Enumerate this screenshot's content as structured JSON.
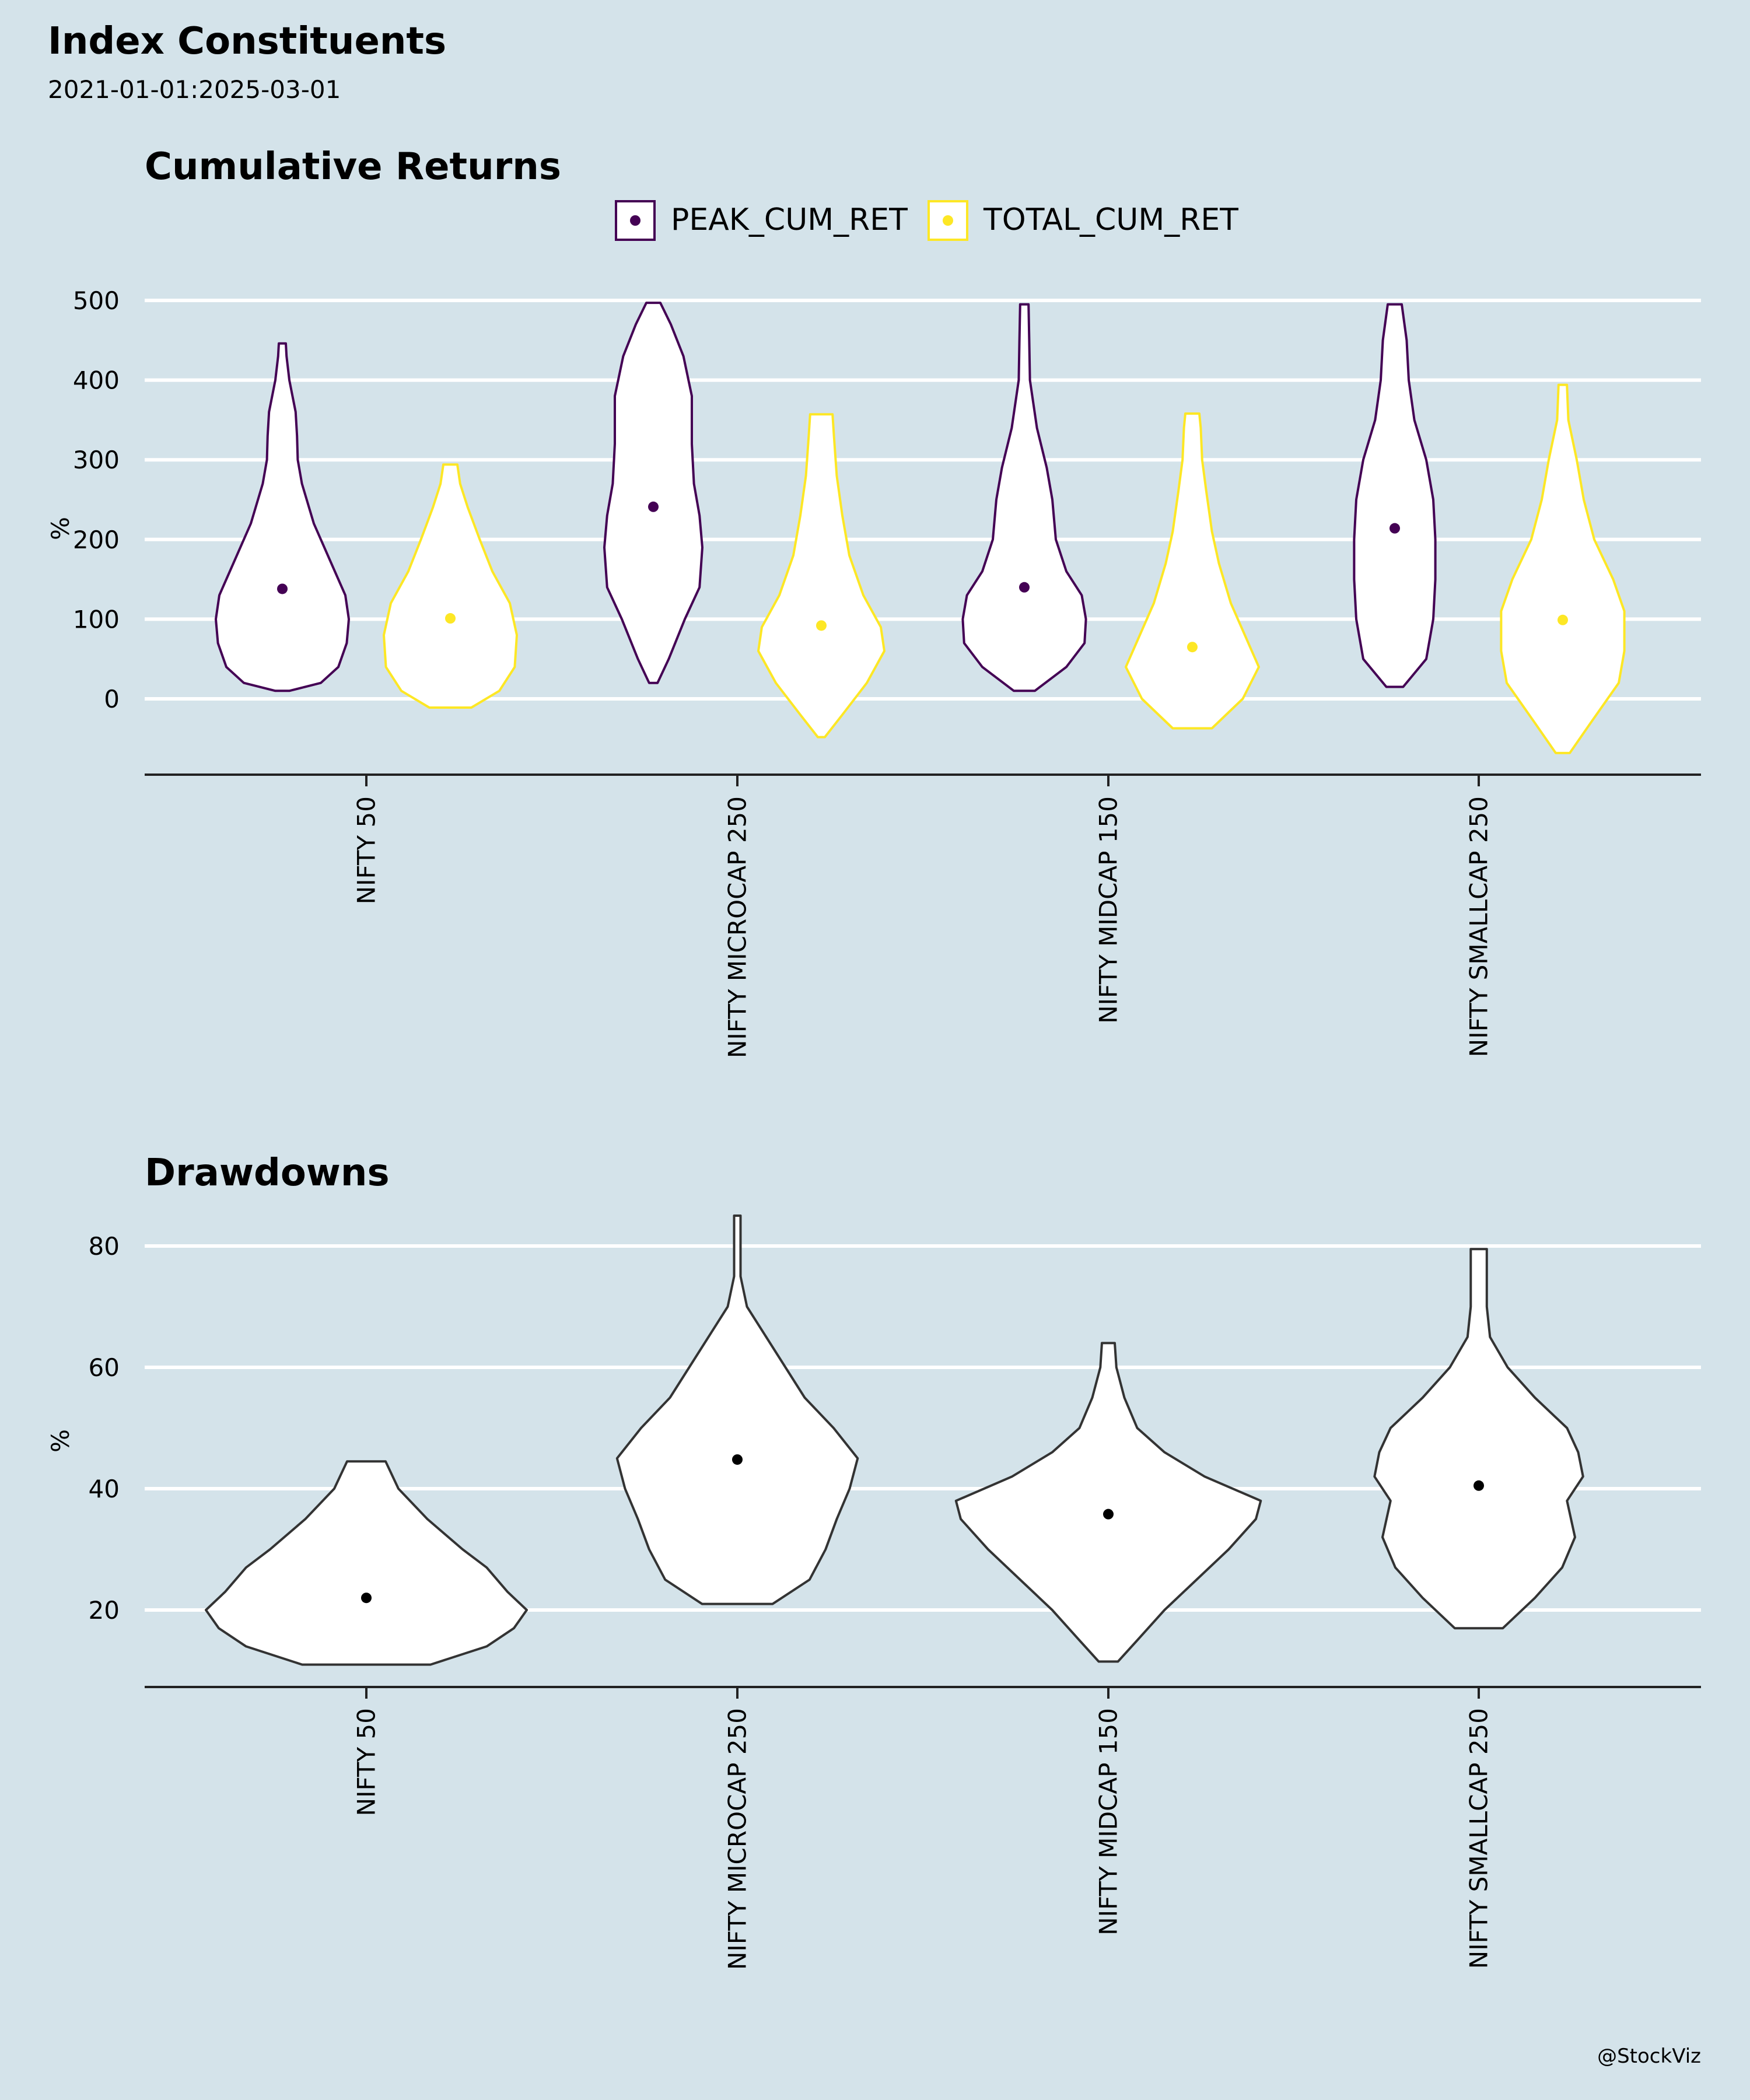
{
  "page": {
    "title": "Index Constituents",
    "subtitle": "2021-01-01:2025-03-01",
    "credit": "@StockViz"
  },
  "colors": {
    "background": "#d4e3ea",
    "grid": "#ffffff",
    "peak": "#440154",
    "total": "#fde725",
    "drawdown": "#333333",
    "violin_fill": "#ffffff"
  },
  "chart_data": [
    {
      "type": "violin",
      "title": "Cumulative Returns",
      "ylabel": "%",
      "ylim": [
        -95,
        520
      ],
      "yticks": [
        0,
        100,
        200,
        300,
        400,
        500
      ],
      "grid": true,
      "legend_position": "top-center",
      "categories": [
        "NIFTY 50",
        "NIFTY MICROCAP 250",
        "NIFTY MIDCAP 150",
        "NIFTY SMALLCAP 250"
      ],
      "series": [
        {
          "name": "PEAK_CUM_RET",
          "color": "#440154",
          "medians": [
            138,
            241,
            140,
            214
          ],
          "violins": [
            {
              "min": 10,
              "max": 446,
              "profile": [
                [
                  10,
                  0.1
                ],
                [
                  20,
                  0.55
                ],
                [
                  40,
                  0.8
                ],
                [
                  70,
                  0.92
                ],
                [
                  100,
                  0.95
                ],
                [
                  130,
                  0.9
                ],
                [
                  170,
                  0.7
                ],
                [
                  220,
                  0.45
                ],
                [
                  270,
                  0.28
                ],
                [
                  300,
                  0.22
                ],
                [
                  330,
                  0.21
                ],
                [
                  360,
                  0.19
                ],
                [
                  400,
                  0.1
                ],
                [
                  430,
                  0.06
                ],
                [
                  446,
                  0.05
                ]
              ]
            },
            {
              "min": 20,
              "max": 497,
              "profile": [
                [
                  20,
                  0.06
                ],
                [
                  50,
                  0.22
                ],
                [
                  100,
                  0.45
                ],
                [
                  140,
                  0.66
                ],
                [
                  190,
                  0.7
                ],
                [
                  230,
                  0.66
                ],
                [
                  270,
                  0.58
                ],
                [
                  320,
                  0.55
                ],
                [
                  380,
                  0.55
                ],
                [
                  430,
                  0.43
                ],
                [
                  470,
                  0.25
                ],
                [
                  497,
                  0.1
                ]
              ]
            },
            {
              "min": 10,
              "max": 495,
              "profile": [
                [
                  10,
                  0.15
                ],
                [
                  40,
                  0.6
                ],
                [
                  70,
                  0.86
                ],
                [
                  100,
                  0.88
                ],
                [
                  130,
                  0.82
                ],
                [
                  160,
                  0.6
                ],
                [
                  200,
                  0.45
                ],
                [
                  250,
                  0.4
                ],
                [
                  290,
                  0.32
                ],
                [
                  340,
                  0.18
                ],
                [
                  400,
                  0.08
                ],
                [
                  450,
                  0.07
                ],
                [
                  495,
                  0.06
                ]
              ]
            },
            {
              "min": 15,
              "max": 495,
              "profile": [
                [
                  15,
                  0.12
                ],
                [
                  50,
                  0.45
                ],
                [
                  100,
                  0.55
                ],
                [
                  150,
                  0.58
                ],
                [
                  200,
                  0.58
                ],
                [
                  250,
                  0.55
                ],
                [
                  300,
                  0.45
                ],
                [
                  350,
                  0.28
                ],
                [
                  400,
                  0.2
                ],
                [
                  450,
                  0.17
                ],
                [
                  495,
                  0.1
                ]
              ]
            }
          ]
        },
        {
          "name": "TOTAL_CUM_RET",
          "color": "#fde725",
          "medians": [
            101,
            92,
            65,
            99
          ],
          "violins": [
            {
              "min": -11,
              "max": 294,
              "profile": [
                [
                  -11,
                  0.3
                ],
                [
                  10,
                  0.7
                ],
                [
                  40,
                  0.92
                ],
                [
                  80,
                  0.95
                ],
                [
                  120,
                  0.85
                ],
                [
                  160,
                  0.6
                ],
                [
                  200,
                  0.42
                ],
                [
                  240,
                  0.25
                ],
                [
                  270,
                  0.14
                ],
                [
                  294,
                  0.1
                ]
              ]
            },
            {
              "min": -48,
              "max": 357,
              "profile": [
                [
                  -48,
                  0.05
                ],
                [
                  -20,
                  0.3
                ],
                [
                  20,
                  0.65
                ],
                [
                  60,
                  0.9
                ],
                [
                  90,
                  0.85
                ],
                [
                  130,
                  0.6
                ],
                [
                  180,
                  0.4
                ],
                [
                  230,
                  0.3
                ],
                [
                  280,
                  0.22
                ],
                [
                  330,
                  0.18
                ],
                [
                  357,
                  0.16
                ]
              ]
            },
            {
              "min": -37,
              "max": 358,
              "profile": [
                [
                  -37,
                  0.28
                ],
                [
                  0,
                  0.72
                ],
                [
                  40,
                  0.95
                ],
                [
                  80,
                  0.75
                ],
                [
                  120,
                  0.55
                ],
                [
                  170,
                  0.38
                ],
                [
                  210,
                  0.28
                ],
                [
                  260,
                  0.2
                ],
                [
                  300,
                  0.14
                ],
                [
                  340,
                  0.12
                ],
                [
                  358,
                  0.1
                ]
              ]
            },
            {
              "min": -68,
              "max": 394,
              "profile": [
                [
                  -68,
                  0.1
                ],
                [
                  -30,
                  0.4
                ],
                [
                  20,
                  0.8
                ],
                [
                  60,
                  0.88
                ],
                [
                  110,
                  0.88
                ],
                [
                  150,
                  0.72
                ],
                [
                  200,
                  0.45
                ],
                [
                  250,
                  0.3
                ],
                [
                  300,
                  0.2
                ],
                [
                  350,
                  0.08
                ],
                [
                  394,
                  0.06
                ]
              ]
            }
          ]
        }
      ]
    },
    {
      "type": "violin",
      "title": "Drawdowns",
      "ylabel": "%",
      "ylim": [
        7.5,
        86
      ],
      "yticks": [
        20,
        40,
        60,
        80
      ],
      "grid": true,
      "legend_position": "none",
      "categories": [
        "NIFTY 50",
        "NIFTY MICROCAP 250",
        "NIFTY MIDCAP 150",
        "NIFTY SMALLCAP 250"
      ],
      "series": [
        {
          "name": "",
          "color": "#333333",
          "medians": [
            22,
            44.8,
            35.8,
            40.5
          ],
          "violins": [
            {
              "min": 11,
              "max": 44.5,
              "profile": [
                [
                  11,
                  0.4
                ],
                [
                  14,
                  0.75
                ],
                [
                  17,
                  0.92
                ],
                [
                  20,
                  1.0
                ],
                [
                  23,
                  0.88
                ],
                [
                  27,
                  0.75
                ],
                [
                  30,
                  0.6
                ],
                [
                  35,
                  0.38
                ],
                [
                  40,
                  0.2
                ],
                [
                  44.5,
                  0.12
                ]
              ]
            },
            {
              "min": 21,
              "max": 85,
              "profile": [
                [
                  21,
                  0.22
                ],
                [
                  25,
                  0.45
                ],
                [
                  30,
                  0.55
                ],
                [
                  35,
                  0.62
                ],
                [
                  40,
                  0.7
                ],
                [
                  45,
                  0.75
                ],
                [
                  50,
                  0.6
                ],
                [
                  55,
                  0.42
                ],
                [
                  60,
                  0.3
                ],
                [
                  65,
                  0.18
                ],
                [
                  70,
                  0.06
                ],
                [
                  75,
                  0.02
                ],
                [
                  80,
                  0.02
                ],
                [
                  85,
                  0.02
                ]
              ]
            },
            {
              "min": 11.5,
              "max": 64,
              "profile": [
                [
                  11.5,
                  0.06
                ],
                [
                  15,
                  0.18
                ],
                [
                  20,
                  0.35
                ],
                [
                  25,
                  0.55
                ],
                [
                  30,
                  0.75
                ],
                [
                  35,
                  0.92
                ],
                [
                  38,
                  0.95
                ],
                [
                  42,
                  0.6
                ],
                [
                  46,
                  0.35
                ],
                [
                  50,
                  0.18
                ],
                [
                  55,
                  0.1
                ],
                [
                  60,
                  0.05
                ],
                [
                  64,
                  0.04
                ]
              ]
            },
            {
              "min": 17,
              "max": 79.5,
              "profile": [
                [
                  17,
                  0.15
                ],
                [
                  22,
                  0.35
                ],
                [
                  27,
                  0.52
                ],
                [
                  32,
                  0.6
                ],
                [
                  38,
                  0.55
                ],
                [
                  42,
                  0.65
                ],
                [
                  46,
                  0.62
                ],
                [
                  50,
                  0.55
                ],
                [
                  55,
                  0.35
                ],
                [
                  60,
                  0.18
                ],
                [
                  65,
                  0.07
                ],
                [
                  70,
                  0.05
                ],
                [
                  75,
                  0.05
                ],
                [
                  79.5,
                  0.05
                ]
              ]
            }
          ]
        }
      ]
    }
  ]
}
